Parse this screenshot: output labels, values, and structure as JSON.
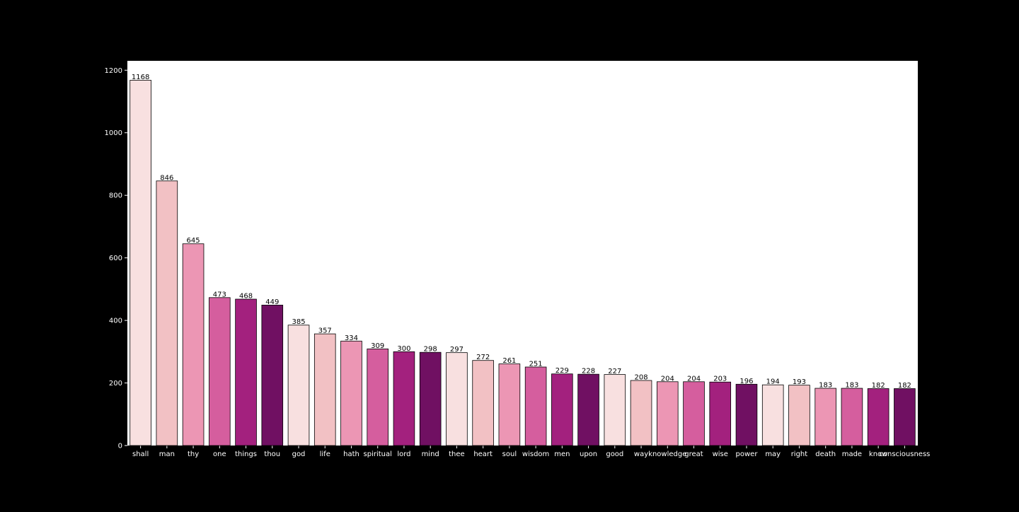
{
  "chart_data": {
    "type": "bar",
    "title": "",
    "xlabel": "",
    "ylabel": "",
    "categories": [
      "shall",
      "man",
      "thy",
      "one",
      "things",
      "thou",
      "god",
      "life",
      "hath",
      "spiritual",
      "lord",
      "mind",
      "thee",
      "heart",
      "soul",
      "wisdom",
      "men",
      "upon",
      "good",
      "way",
      "knowledge",
      "great",
      "wise",
      "power",
      "may",
      "right",
      "death",
      "made",
      "know",
      "consciousness"
    ],
    "values": [
      1168,
      846,
      645,
      473,
      468,
      449,
      385,
      357,
      334,
      309,
      300,
      298,
      297,
      272,
      261,
      251,
      229,
      228,
      227,
      208,
      204,
      204,
      203,
      196,
      194,
      193,
      183,
      183,
      182,
      182
    ],
    "ylim": [
      0,
      1230
    ],
    "yticks": [
      0,
      200,
      400,
      600,
      800,
      1000,
      1200
    ],
    "grid": false,
    "legend": "none",
    "palette": [
      "#f8e0e0",
      "#f2c1c4",
      "#ec96b4",
      "#d55e9e",
      "#a3217e",
      "#701062"
    ],
    "background": "#000000",
    "plot_background": "#ffffff",
    "tick_color": "#ffffff",
    "bar_edge_color": "#000000"
  }
}
